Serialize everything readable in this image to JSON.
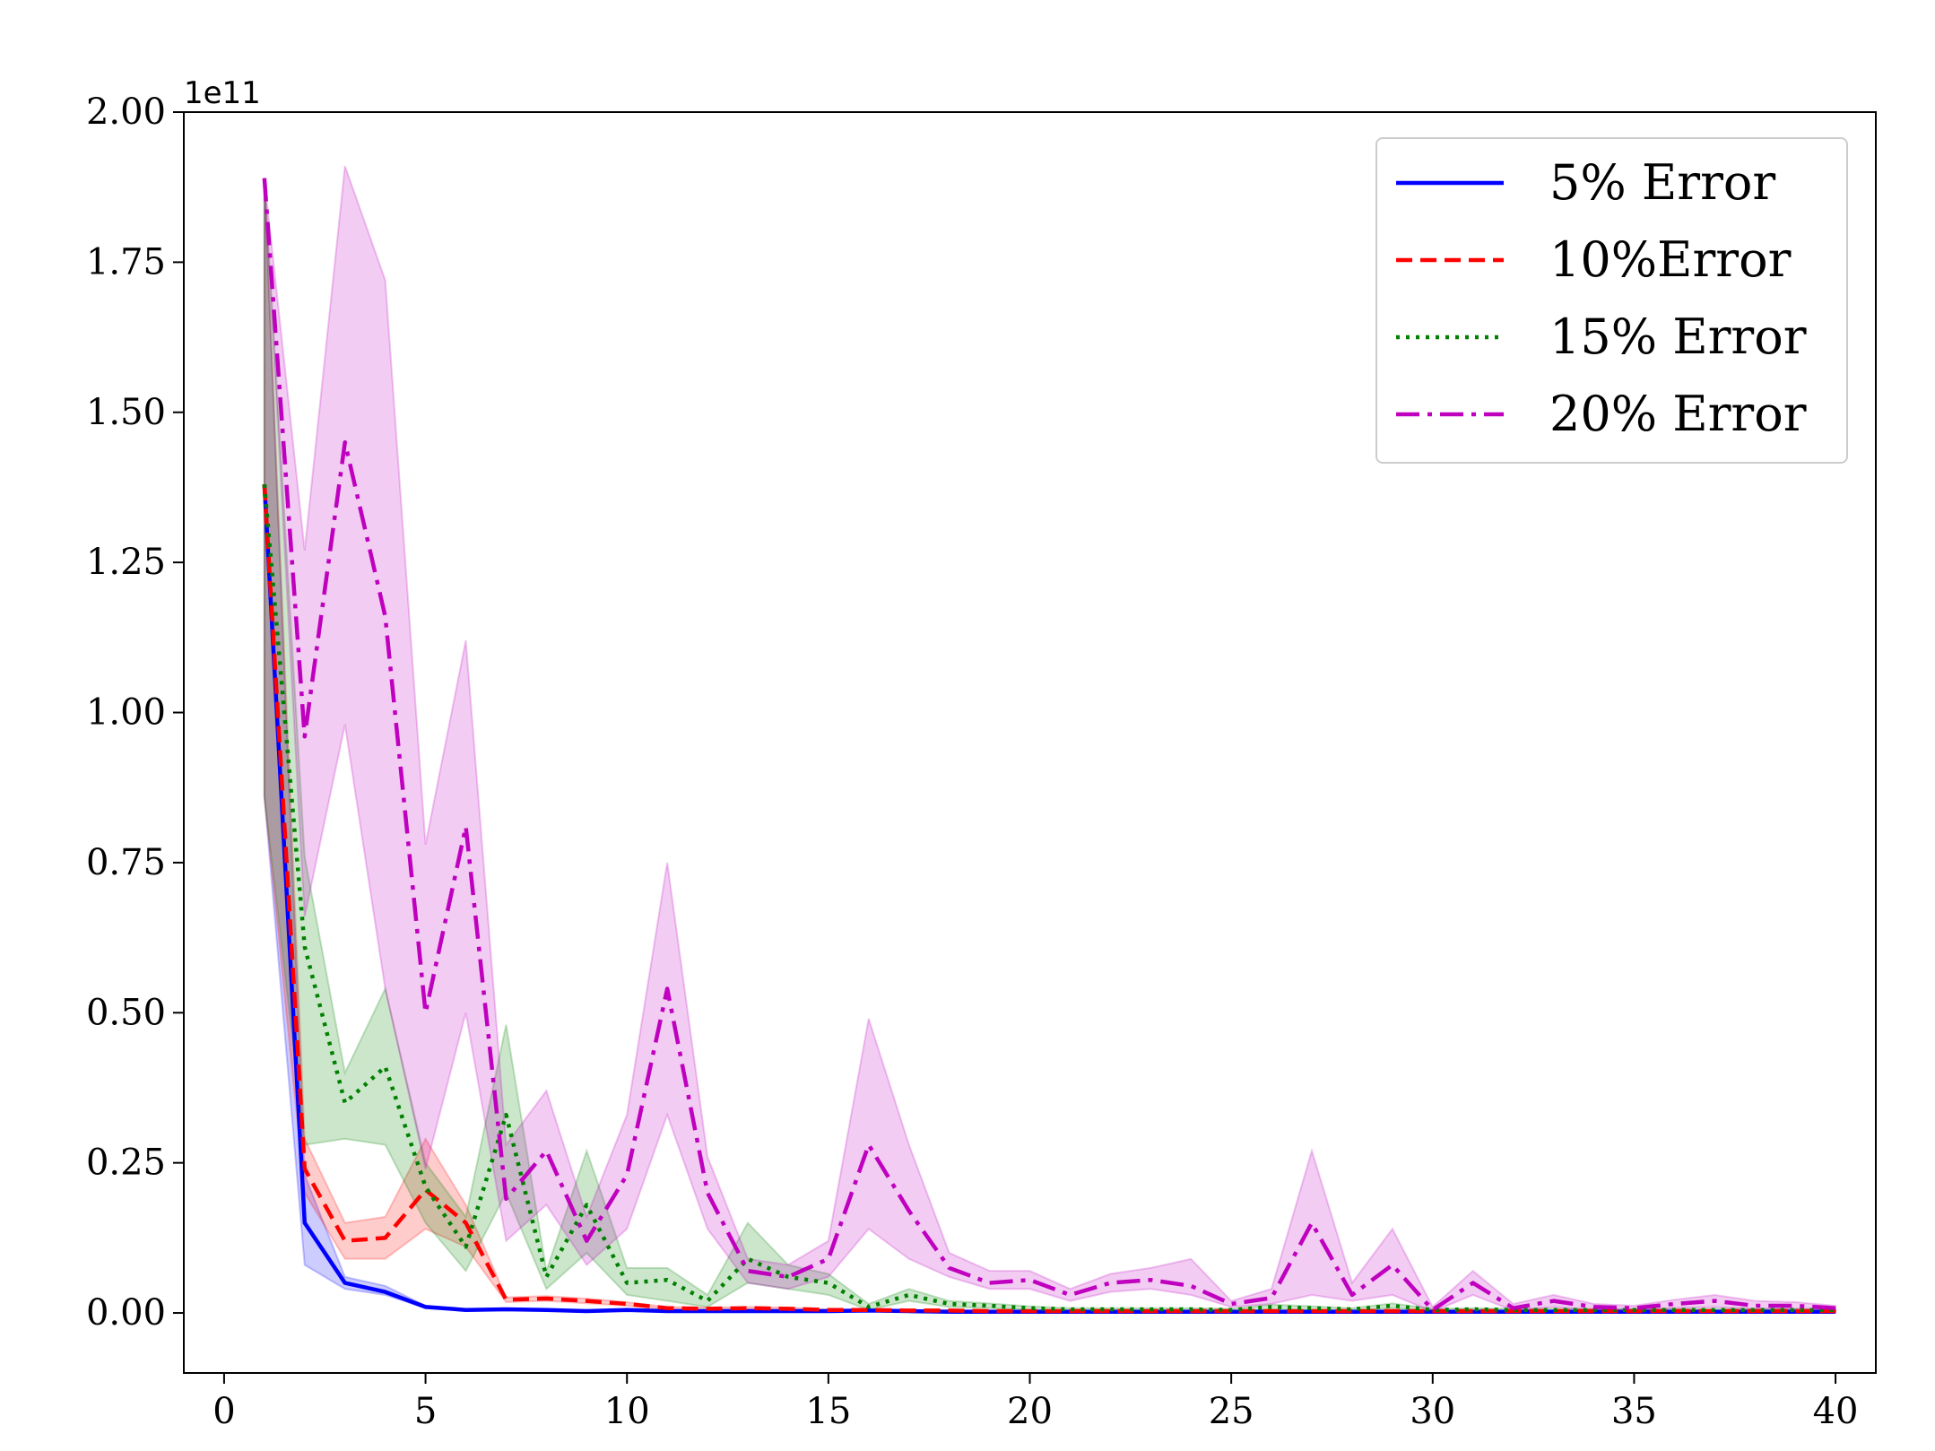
{
  "chart_data": {
    "type": "line",
    "title": "",
    "xlabel": "",
    "ylabel": "",
    "xlim": [
      -1,
      41
    ],
    "ylim": [
      -0.1,
      2.0
    ],
    "y_offset_label": "1e11",
    "xticks": [
      0,
      5,
      10,
      15,
      20,
      25,
      30,
      35,
      40
    ],
    "xtick_labels": [
      "0",
      "5",
      "10",
      "15",
      "20",
      "25",
      "30",
      "35",
      "40"
    ],
    "yticks": [
      0,
      0.25,
      0.5,
      0.75,
      1.0,
      1.25,
      1.5,
      1.75,
      2.0
    ],
    "ytick_labels": [
      "0.00",
      "0.25",
      "0.50",
      "0.75",
      "1.00",
      "1.25",
      "1.50",
      "1.75",
      "2.00"
    ],
    "grid": false,
    "legend_position": "top-right",
    "x": [
      1,
      2,
      3,
      4,
      5,
      6,
      7,
      8,
      9,
      10,
      11,
      12,
      13,
      14,
      15,
      16,
      17,
      18,
      19,
      20,
      21,
      22,
      23,
      24,
      25,
      26,
      27,
      28,
      29,
      30,
      31,
      32,
      33,
      34,
      35,
      36,
      37,
      38,
      39,
      40
    ],
    "series": [
      {
        "name": "5% Error",
        "color": "#0000ff",
        "style": "solid",
        "values": [
          1.38,
          0.15,
          0.05,
          0.035,
          0.01,
          0.005,
          0.006,
          0.005,
          0.003,
          0.005,
          0.003,
          0.003,
          0.003,
          0.003,
          0.003,
          0.004,
          0.003,
          0.002,
          0.002,
          0.002,
          0.002,
          0.002,
          0.002,
          0.002,
          0.002,
          0.002,
          0.002,
          0.002,
          0.002,
          0.002,
          0.002,
          0.002,
          0.002,
          0.002,
          0.002,
          0.002,
          0.002,
          0.002,
          0.002,
          0.002
        ],
        "lower": [
          0.86,
          0.08,
          0.04,
          0.03,
          0.008,
          0.004,
          0.005,
          0.004,
          0.002,
          0.004,
          0.002,
          0.002,
          0.002,
          0.002,
          0.002,
          0.003,
          0.002,
          0.001,
          0.001,
          0.001,
          0.001,
          0.001,
          0.001,
          0.001,
          0.001,
          0.001,
          0.001,
          0.001,
          0.001,
          0.001,
          0.001,
          0.001,
          0.001,
          0.001,
          0.001,
          0.001,
          0.001,
          0.001,
          0.001,
          0.001
        ],
        "upper": [
          1.89,
          0.23,
          0.06,
          0.045,
          0.012,
          0.006,
          0.007,
          0.006,
          0.004,
          0.006,
          0.004,
          0.004,
          0.004,
          0.004,
          0.004,
          0.005,
          0.004,
          0.003,
          0.003,
          0.003,
          0.003,
          0.003,
          0.003,
          0.003,
          0.003,
          0.003,
          0.003,
          0.003,
          0.003,
          0.003,
          0.003,
          0.003,
          0.003,
          0.003,
          0.003,
          0.003,
          0.003,
          0.003,
          0.003,
          0.003
        ]
      },
      {
        "name": "10%Error",
        "color": "#ff0000",
        "style": "dashed",
        "values": [
          1.38,
          0.24,
          0.12,
          0.125,
          0.205,
          0.15,
          0.022,
          0.024,
          0.02,
          0.015,
          0.008,
          0.007,
          0.008,
          0.007,
          0.005,
          0.005,
          0.004,
          0.004,
          0.003,
          0.003,
          0.003,
          0.003,
          0.003,
          0.003,
          0.003,
          0.003,
          0.003,
          0.003,
          0.003,
          0.003,
          0.003,
          0.003,
          0.003,
          0.003,
          0.003,
          0.003,
          0.003,
          0.003,
          0.003,
          0.003
        ],
        "lower": [
          0.86,
          0.2,
          0.09,
          0.09,
          0.14,
          0.11,
          0.018,
          0.02,
          0.016,
          0.012,
          0.006,
          0.005,
          0.006,
          0.005,
          0.004,
          0.004,
          0.003,
          0.003,
          0.002,
          0.002,
          0.002,
          0.002,
          0.002,
          0.002,
          0.002,
          0.002,
          0.002,
          0.002,
          0.002,
          0.002,
          0.002,
          0.002,
          0.002,
          0.002,
          0.002,
          0.002,
          0.002,
          0.002,
          0.002,
          0.002
        ],
        "upper": [
          1.89,
          0.29,
          0.15,
          0.16,
          0.29,
          0.18,
          0.026,
          0.028,
          0.024,
          0.018,
          0.01,
          0.009,
          0.01,
          0.009,
          0.006,
          0.006,
          0.005,
          0.005,
          0.004,
          0.004,
          0.004,
          0.004,
          0.004,
          0.004,
          0.004,
          0.004,
          0.004,
          0.004,
          0.004,
          0.004,
          0.004,
          0.004,
          0.004,
          0.004,
          0.004,
          0.004,
          0.004,
          0.004,
          0.004,
          0.004
        ]
      },
      {
        "name": "15% Error",
        "color": "#008000",
        "style": "dotted",
        "values": [
          1.38,
          0.61,
          0.35,
          0.41,
          0.21,
          0.11,
          0.33,
          0.06,
          0.18,
          0.05,
          0.055,
          0.02,
          0.09,
          0.06,
          0.05,
          0.01,
          0.03,
          0.015,
          0.012,
          0.008,
          0.006,
          0.006,
          0.006,
          0.006,
          0.005,
          0.01,
          0.008,
          0.006,
          0.012,
          0.005,
          0.006,
          0.005,
          0.005,
          0.005,
          0.005,
          0.005,
          0.005,
          0.005,
          0.005,
          0.005
        ],
        "lower": [
          0.86,
          0.28,
          0.29,
          0.28,
          0.15,
          0.07,
          0.2,
          0.04,
          0.1,
          0.03,
          0.02,
          0.01,
          0.05,
          0.04,
          0.03,
          0.005,
          0.02,
          0.01,
          0.008,
          0.005,
          0.004,
          0.004,
          0.004,
          0.004,
          0.003,
          0.005,
          0.005,
          0.004,
          0.008,
          0.003,
          0.004,
          0.003,
          0.003,
          0.003,
          0.003,
          0.003,
          0.003,
          0.003,
          0.003,
          0.003
        ],
        "upper": [
          1.89,
          0.76,
          0.4,
          0.54,
          0.25,
          0.16,
          0.48,
          0.07,
          0.27,
          0.075,
          0.075,
          0.03,
          0.15,
          0.08,
          0.065,
          0.015,
          0.04,
          0.02,
          0.016,
          0.011,
          0.008,
          0.008,
          0.008,
          0.008,
          0.007,
          0.014,
          0.011,
          0.008,
          0.016,
          0.007,
          0.008,
          0.007,
          0.007,
          0.007,
          0.007,
          0.007,
          0.007,
          0.007,
          0.007,
          0.007
        ]
      },
      {
        "name": "20% Error",
        "color": "#bf00bf",
        "style": "dashdot",
        "values": [
          1.89,
          0.96,
          1.45,
          1.16,
          0.5,
          0.81,
          0.19,
          0.27,
          0.12,
          0.23,
          0.54,
          0.2,
          0.07,
          0.06,
          0.09,
          0.28,
          0.17,
          0.075,
          0.05,
          0.055,
          0.03,
          0.05,
          0.055,
          0.045,
          0.015,
          0.025,
          0.15,
          0.03,
          0.08,
          0.005,
          0.05,
          0.008,
          0.02,
          0.01,
          0.008,
          0.015,
          0.02,
          0.012,
          0.012,
          0.008
        ],
        "lower": [
          1.89,
          0.66,
          0.98,
          0.54,
          0.24,
          0.5,
          0.12,
          0.18,
          0.08,
          0.14,
          0.33,
          0.14,
          0.05,
          0.04,
          0.06,
          0.14,
          0.09,
          0.06,
          0.04,
          0.04,
          0.02,
          0.035,
          0.04,
          0.03,
          0.01,
          0.015,
          0.03,
          0.02,
          0.03,
          0.002,
          0.03,
          0.004,
          0.01,
          0.005,
          0.004,
          0.008,
          0.01,
          0.006,
          0.006,
          0.004
        ],
        "upper": [
          1.89,
          1.27,
          1.91,
          1.72,
          0.78,
          1.12,
          0.28,
          0.37,
          0.16,
          0.33,
          0.75,
          0.26,
          0.09,
          0.08,
          0.12,
          0.49,
          0.28,
          0.1,
          0.07,
          0.07,
          0.04,
          0.065,
          0.075,
          0.09,
          0.02,
          0.04,
          0.27,
          0.05,
          0.14,
          0.01,
          0.07,
          0.015,
          0.03,
          0.015,
          0.012,
          0.022,
          0.03,
          0.02,
          0.018,
          0.012
        ]
      }
    ]
  }
}
